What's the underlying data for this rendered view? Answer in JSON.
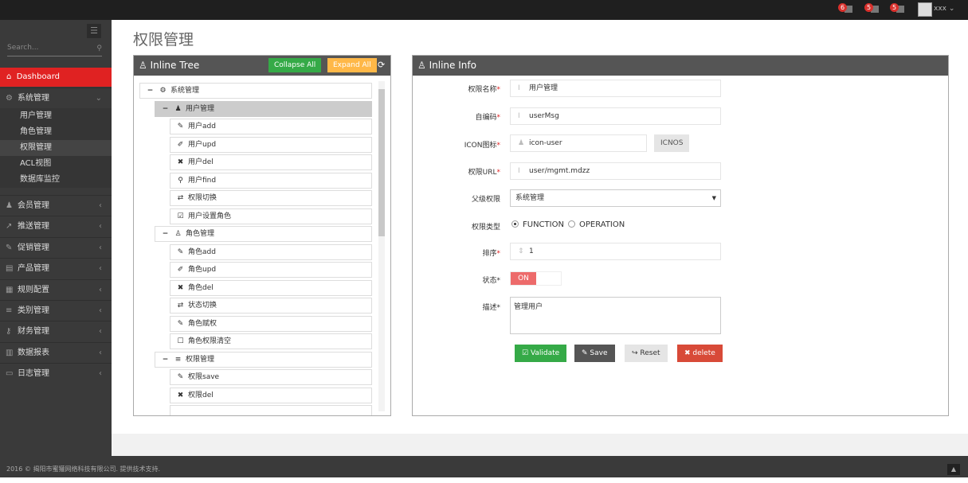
{
  "topbar": {
    "badges": [
      {
        "count": "6",
        "icon": "bell-icon"
      },
      {
        "count": "5",
        "icon": "envelope-icon"
      },
      {
        "count": "5",
        "icon": "tasks-icon"
      }
    ],
    "user": "xxx"
  },
  "sidebar": {
    "search_placeholder": "Search...",
    "active": "Dashboard",
    "group_open": "系统管理",
    "sub_items": [
      "用户管理",
      "角色管理",
      "权限管理",
      "ACL视图",
      "数据库监控"
    ],
    "items": [
      {
        "label": "会员管理",
        "icon": "user-icon"
      },
      {
        "label": "推送管理",
        "icon": "share-icon"
      },
      {
        "label": "促销管理",
        "icon": "pencil-icon"
      },
      {
        "label": "产品管理",
        "icon": "box-icon"
      },
      {
        "label": "规则配置",
        "icon": "list-alt-icon"
      },
      {
        "label": "类别管理",
        "icon": "bars-icon"
      },
      {
        "label": "财务管理",
        "icon": "key-icon"
      },
      {
        "label": "数据报表",
        "icon": "bar-chart-icon"
      },
      {
        "label": "日志管理",
        "icon": "credit-card-icon"
      }
    ]
  },
  "page": {
    "title": "权限管理"
  },
  "tree": {
    "title": "Inline Tree",
    "collapse_label": "Collapse All",
    "expand_label": "Expand All",
    "colors": {
      "collapse": "#35aa47",
      "expand": "#ffb848"
    },
    "nodes": [
      {
        "level": 0,
        "label": "系统管理",
        "icon": "cogs-icon",
        "toggle": "−"
      },
      {
        "level": 1,
        "label": "用户管理",
        "icon": "user-icon",
        "toggle": "−",
        "selected": true
      },
      {
        "level": 2,
        "label": "用户add",
        "icon": "pencil-icon"
      },
      {
        "level": 2,
        "label": "用户upd",
        "icon": "edit-icon"
      },
      {
        "level": 2,
        "label": "用户del",
        "icon": "times-icon"
      },
      {
        "level": 2,
        "label": "用户find",
        "icon": "search-icon"
      },
      {
        "level": 2,
        "label": "权限切换",
        "icon": "retweet-icon"
      },
      {
        "level": 2,
        "label": "用户设置角色",
        "icon": "check-square-icon"
      },
      {
        "level": 1,
        "label": "角色管理",
        "icon": "sitemap-icon",
        "toggle": "−"
      },
      {
        "level": 2,
        "label": "角色add",
        "icon": "pencil-icon"
      },
      {
        "level": 2,
        "label": "角色upd",
        "icon": "edit-icon"
      },
      {
        "level": 2,
        "label": "角色del",
        "icon": "times-icon"
      },
      {
        "level": 2,
        "label": "状态切换",
        "icon": "retweet-icon"
      },
      {
        "level": 2,
        "label": "角色赋权",
        "icon": "pencil-icon"
      },
      {
        "level": 2,
        "label": "角色权限清空",
        "icon": "square-icon"
      },
      {
        "level": 1,
        "label": "权限管理",
        "icon": "bars-icon",
        "toggle": "−"
      },
      {
        "level": 2,
        "label": "权限save",
        "icon": "pencil-icon"
      },
      {
        "level": 2,
        "label": "权限del",
        "icon": "times-icon"
      }
    ]
  },
  "info": {
    "title": "Inline Info",
    "fields": {
      "name": {
        "label": "权限名称",
        "value": "用户管理"
      },
      "code": {
        "label": "自编码",
        "value": "userMsg"
      },
      "icon": {
        "label": "ICON图标",
        "value": "icon-user",
        "button": "ICNOS"
      },
      "url": {
        "label": "权限URL",
        "value": "user/mgmt.mdzz"
      },
      "parent": {
        "label": "父级权限",
        "value": "系统管理"
      },
      "type": {
        "label": "权限类型",
        "options": [
          "FUNCTION",
          "OPERATION"
        ],
        "selected": "FUNCTION"
      },
      "order": {
        "label": "排序",
        "value": "1"
      },
      "status": {
        "label": "状态",
        "value": "ON"
      },
      "desc": {
        "label": "描述",
        "value": "管理用户"
      }
    },
    "buttons": {
      "validate": "Validate",
      "save": "Save",
      "reset": "Reset",
      "delete": "delete"
    }
  },
  "footer": {
    "text": "2016 © 揭阳市蜜獾网络科技有限公司. 提供技术支持."
  }
}
